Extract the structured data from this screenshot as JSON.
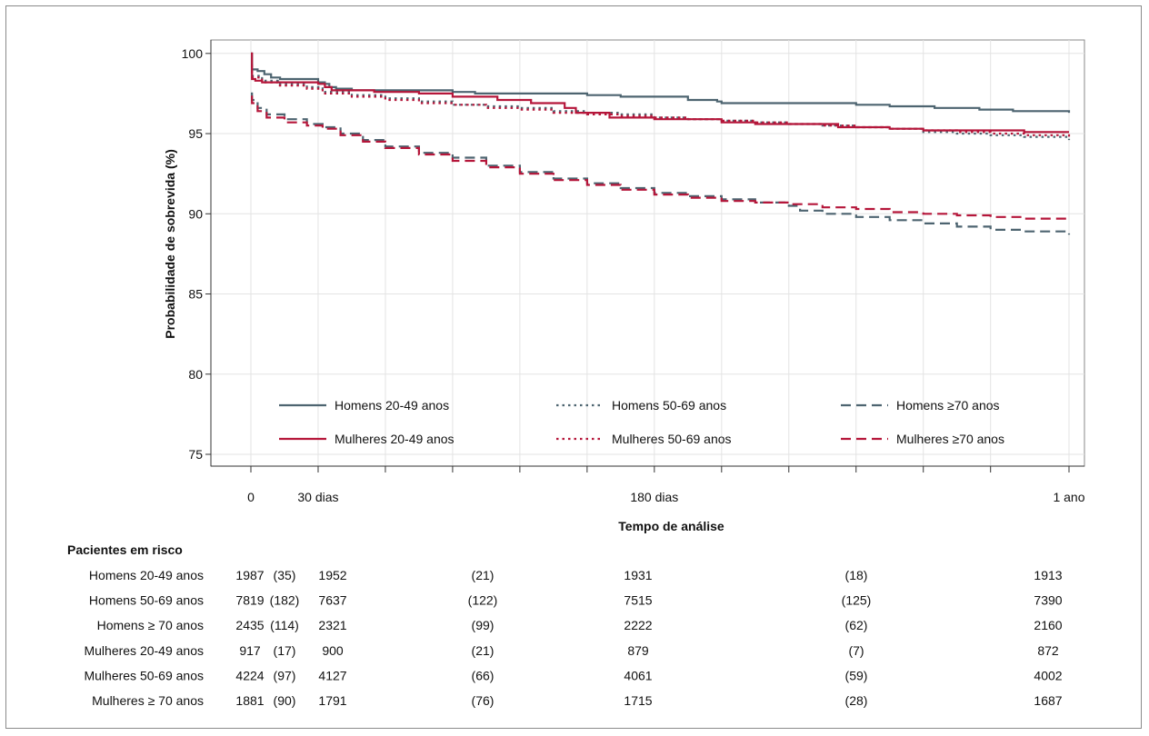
{
  "chart_data": {
    "type": "line",
    "title": "",
    "xlabel": "Tempo de análise",
    "ylabel": "Probabilidade de sobrevida (%)",
    "xlim": [
      0,
      365
    ],
    "ylim": [
      73.5,
      101
    ],
    "y_ticks": [
      75,
      80,
      85,
      90,
      95,
      100
    ],
    "y_tick_labels": [
      "75",
      "80",
      "85",
      "90",
      "95",
      "100"
    ],
    "x_ticks": [
      0,
      30,
      60,
      90,
      120,
      150,
      180,
      210,
      240,
      270,
      300,
      330,
      365
    ],
    "x_tick_labels": [
      {
        "x": 0,
        "label": "0"
      },
      {
        "x": 30,
        "label": "30 dias"
      },
      {
        "x": 180,
        "label": "180 dias"
      },
      {
        "x": 365,
        "label": "1 ano"
      }
    ],
    "grid": true,
    "legend_position": "inside-bottom",
    "series": [
      {
        "name": "Homens 20-49 anos",
        "color": "#4d6470",
        "dash": "solid",
        "points": [
          [
            0,
            100
          ],
          [
            0.5,
            99.0
          ],
          [
            3,
            98.9
          ],
          [
            6,
            98.7
          ],
          [
            9,
            98.5
          ],
          [
            13,
            98.4
          ],
          [
            30,
            98.2
          ],
          [
            33,
            98.1
          ],
          [
            35,
            97.9
          ],
          [
            38,
            97.8
          ],
          [
            45,
            97.7
          ],
          [
            75,
            97.7
          ],
          [
            90,
            97.6
          ],
          [
            100,
            97.5
          ],
          [
            135,
            97.5
          ],
          [
            150,
            97.4
          ],
          [
            165,
            97.3
          ],
          [
            195,
            97.1
          ],
          [
            208,
            97.0
          ],
          [
            210,
            96.9
          ],
          [
            250,
            96.9
          ],
          [
            270,
            96.8
          ],
          [
            285,
            96.7
          ],
          [
            305,
            96.6
          ],
          [
            325,
            96.5
          ],
          [
            340,
            96.4
          ],
          [
            365,
            96.3
          ]
        ]
      },
      {
        "name": "Homens 50-69 anos",
        "color": "#4d6470",
        "dash": "dotted",
        "points": [
          [
            0,
            99.3
          ],
          [
            0.5,
            98.6
          ],
          [
            5,
            98.3
          ],
          [
            12,
            98.1
          ],
          [
            25,
            97.9
          ],
          [
            32,
            97.6
          ],
          [
            45,
            97.4
          ],
          [
            60,
            97.2
          ],
          [
            75,
            97.0
          ],
          [
            90,
            96.8
          ],
          [
            105,
            96.7
          ],
          [
            120,
            96.6
          ],
          [
            135,
            96.4
          ],
          [
            150,
            96.3
          ],
          [
            165,
            96.2
          ],
          [
            180,
            96.0
          ],
          [
            195,
            95.9
          ],
          [
            210,
            95.8
          ],
          [
            225,
            95.7
          ],
          [
            240,
            95.6
          ],
          [
            255,
            95.5
          ],
          [
            270,
            95.4
          ],
          [
            285,
            95.3
          ],
          [
            300,
            95.1
          ],
          [
            315,
            95.0
          ],
          [
            330,
            94.9
          ],
          [
            345,
            94.8
          ],
          [
            365,
            94.6
          ]
        ]
      },
      {
        "name": "Homens ≥70 anos",
        "color": "#4d6470",
        "dash": "dashed",
        "points": [
          [
            0,
            97.5
          ],
          [
            0.5,
            97.1
          ],
          [
            3,
            96.6
          ],
          [
            7,
            96.2
          ],
          [
            15,
            95.9
          ],
          [
            25,
            95.6
          ],
          [
            32,
            95.4
          ],
          [
            40,
            95.0
          ],
          [
            50,
            94.6
          ],
          [
            60,
            94.2
          ],
          [
            75,
            93.8
          ],
          [
            90,
            93.5
          ],
          [
            105,
            93.0
          ],
          [
            120,
            92.6
          ],
          [
            135,
            92.2
          ],
          [
            150,
            91.9
          ],
          [
            165,
            91.6
          ],
          [
            180,
            91.3
          ],
          [
            195,
            91.1
          ],
          [
            210,
            90.9
          ],
          [
            225,
            90.7
          ],
          [
            240,
            90.5
          ],
          [
            245,
            90.2
          ],
          [
            255,
            90.0
          ],
          [
            270,
            89.8
          ],
          [
            285,
            89.6
          ],
          [
            300,
            89.4
          ],
          [
            315,
            89.2
          ],
          [
            330,
            89.0
          ],
          [
            345,
            88.9
          ],
          [
            365,
            88.7
          ]
        ]
      },
      {
        "name": "Mulheres 20-49 anos",
        "color": "#b5163a",
        "dash": "solid",
        "points": [
          [
            0,
            100
          ],
          [
            0.5,
            98.4
          ],
          [
            2,
            98.3
          ],
          [
            5,
            98.2
          ],
          [
            30,
            98.1
          ],
          [
            33,
            97.9
          ],
          [
            36,
            97.7
          ],
          [
            55,
            97.6
          ],
          [
            75,
            97.5
          ],
          [
            90,
            97.3
          ],
          [
            110,
            97.1
          ],
          [
            125,
            96.9
          ],
          [
            140,
            96.6
          ],
          [
            145,
            96.3
          ],
          [
            160,
            96.0
          ],
          [
            180,
            95.9
          ],
          [
            210,
            95.7
          ],
          [
            225,
            95.6
          ],
          [
            240,
            95.6
          ],
          [
            262,
            95.4
          ],
          [
            285,
            95.3
          ],
          [
            300,
            95.2
          ],
          [
            345,
            95.1
          ],
          [
            365,
            95.1
          ]
        ]
      },
      {
        "name": "Mulheres 50-69 anos",
        "color": "#b5163a",
        "dash": "dotted",
        "points": [
          [
            0,
            99.2
          ],
          [
            0.5,
            98.5
          ],
          [
            5,
            98.2
          ],
          [
            12,
            98.0
          ],
          [
            25,
            97.8
          ],
          [
            32,
            97.5
          ],
          [
            45,
            97.3
          ],
          [
            60,
            97.1
          ],
          [
            75,
            96.9
          ],
          [
            90,
            96.8
          ],
          [
            105,
            96.6
          ],
          [
            120,
            96.5
          ],
          [
            135,
            96.3
          ],
          [
            150,
            96.2
          ],
          [
            165,
            96.1
          ],
          [
            180,
            96.0
          ],
          [
            195,
            95.9
          ],
          [
            210,
            95.8
          ],
          [
            225,
            95.7
          ],
          [
            240,
            95.6
          ],
          [
            255,
            95.5
          ],
          [
            270,
            95.4
          ],
          [
            285,
            95.3
          ],
          [
            300,
            95.2
          ],
          [
            315,
            95.1
          ],
          [
            330,
            95.0
          ],
          [
            345,
            94.9
          ],
          [
            365,
            94.8
          ]
        ]
      },
      {
        "name": "Mulheres ≥70 anos",
        "color": "#b5163a",
        "dash": "dashed",
        "points": [
          [
            0,
            97.3
          ],
          [
            0.5,
            96.9
          ],
          [
            3,
            96.4
          ],
          [
            7,
            96.0
          ],
          [
            15,
            95.7
          ],
          [
            25,
            95.5
          ],
          [
            32,
            95.3
          ],
          [
            40,
            94.9
          ],
          [
            50,
            94.5
          ],
          [
            60,
            94.1
          ],
          [
            75,
            93.7
          ],
          [
            90,
            93.3
          ],
          [
            105,
            92.9
          ],
          [
            120,
            92.5
          ],
          [
            135,
            92.1
          ],
          [
            150,
            91.8
          ],
          [
            165,
            91.5
          ],
          [
            180,
            91.2
          ],
          [
            195,
            91.0
          ],
          [
            210,
            90.8
          ],
          [
            225,
            90.7
          ],
          [
            240,
            90.6
          ],
          [
            255,
            90.4
          ],
          [
            270,
            90.3
          ],
          [
            285,
            90.1
          ],
          [
            300,
            90.0
          ],
          [
            315,
            89.9
          ],
          [
            330,
            89.8
          ],
          [
            345,
            89.7
          ],
          [
            365,
            89.7
          ]
        ]
      }
    ]
  },
  "risk_table": {
    "title": "Pacientes em risco",
    "rows": [
      {
        "label": "Homens 20-49 anos",
        "v0": "1987",
        "c1": "(35)",
        "v30": "1952",
        "c2": "(21)",
        "v180": "1931",
        "c3": "(18)",
        "v365": "1913"
      },
      {
        "label": "Homens 50-69 anos",
        "v0": "7819",
        "c1": "(182)",
        "v30": "7637",
        "c2": "(122)",
        "v180": "7515",
        "c3": "(125)",
        "v365": "7390"
      },
      {
        "label": "Homens ≥ 70 anos",
        "v0": "2435",
        "c1": "(114)",
        "v30": "2321",
        "c2": "(99)",
        "v180": "2222",
        "c3": "(62)",
        "v365": "2160"
      },
      {
        "label": "Mulheres 20-49 anos",
        "v0": "917",
        "c1": "(17)",
        "v30": "900",
        "c2": "(21)",
        "v180": "879",
        "c3": "(7)",
        "v365": "872"
      },
      {
        "label": "Mulheres 50-69 anos",
        "v0": "4224",
        "c1": "(97)",
        "v30": "4127",
        "c2": "(66)",
        "v180": "4061",
        "c3": "(59)",
        "v365": "4002"
      },
      {
        "label": "Mulheres ≥ 70 anos",
        "v0": "1881",
        "c1": "(90)",
        "v30": "1791",
        "c2": "(76)",
        "v180": "1715",
        "c3": "(28)",
        "v365": "1687"
      }
    ]
  }
}
